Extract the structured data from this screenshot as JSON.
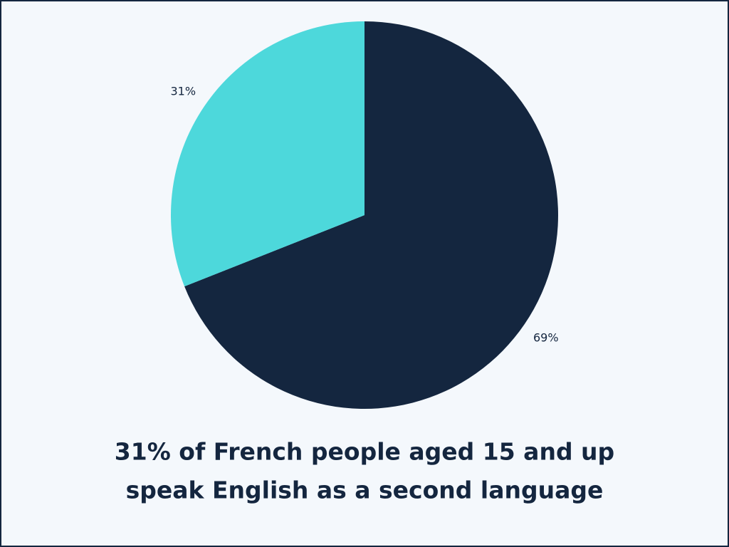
{
  "chart_data": {
    "type": "pie",
    "title": [
      "31% of French people aged 15 and up",
      "speak English as a second language"
    ],
    "values": [
      69,
      31
    ],
    "value_labels": [
      "69%",
      "31%"
    ],
    "colors": [
      "#14263f",
      "#4dd8db"
    ]
  }
}
